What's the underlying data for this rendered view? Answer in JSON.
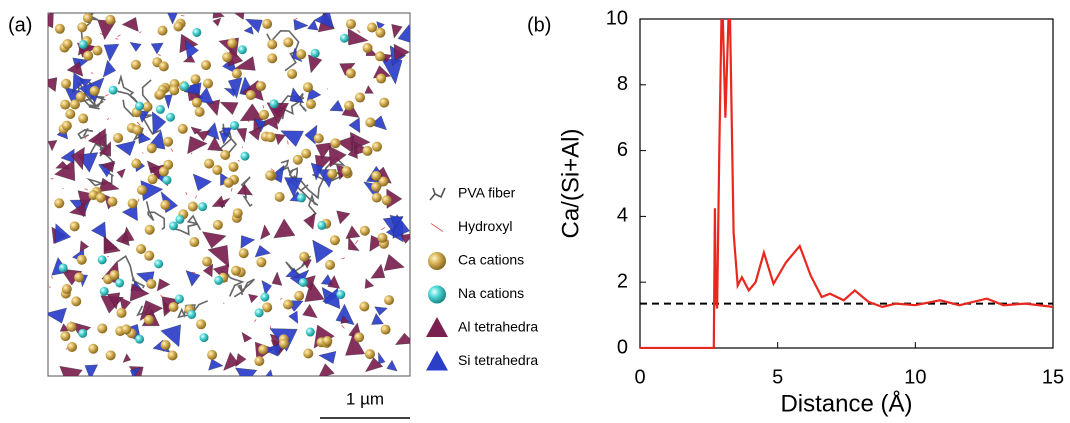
{
  "panel_a": {
    "label": "(a)",
    "legend": [
      "PVA fiber",
      "Hydroxyl",
      "Ca cations",
      "Na cations",
      "Al tetrahedra",
      "Si tetrahedra"
    ],
    "scale_bar": "1 µm"
  },
  "chart_data": {
    "type": "line",
    "panel_label": "(b)",
    "x_label": "Distance (Å)",
    "y_label": "Ca/(Si+Al)",
    "x": [
      0,
      2.68,
      2.72,
      2.75,
      2.8,
      2.88,
      2.98,
      3.1,
      3.25,
      3.4,
      3.55,
      3.7,
      3.95,
      4.2,
      4.5,
      4.85,
      5.3,
      5.8,
      6.2,
      6.6,
      6.9,
      7.4,
      7.8,
      8.3,
      8.8,
      9.3,
      10,
      10.9,
      11.6,
      12.6,
      13.2,
      14,
      15
    ],
    "series": [
      {
        "name": "Ca/(Si+Al)",
        "color": "#e8281e",
        "values": [
          0,
          0,
          4.25,
          1.6,
          1.2,
          6,
          11,
          7,
          11,
          3.5,
          1.9,
          2.15,
          1.75,
          2.0,
          2.9,
          1.95,
          2.6,
          3.1,
          2.2,
          1.55,
          1.65,
          1.45,
          1.75,
          1.4,
          1.25,
          1.35,
          1.3,
          1.45,
          1.3,
          1.5,
          1.3,
          1.35,
          1.25
        ]
      }
    ],
    "reference_line": 1.35,
    "xlim": [
      0,
      15
    ],
    "xticks": [
      0,
      5,
      10,
      15
    ],
    "ylim": [
      0,
      10
    ],
    "yticks": [
      0,
      2,
      4,
      6,
      8,
      10
    ]
  }
}
